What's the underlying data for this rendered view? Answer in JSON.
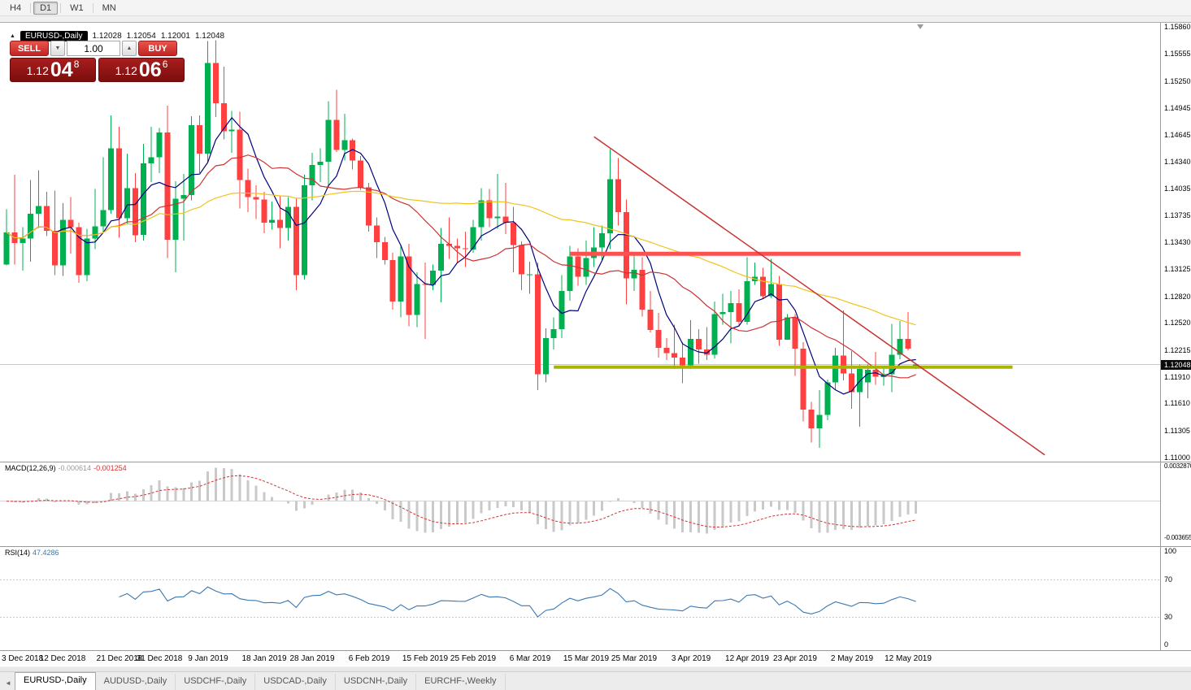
{
  "toolbar": {
    "timeframes": [
      {
        "label": "H4",
        "active": false
      },
      {
        "label": "D1",
        "active": true
      },
      {
        "label": "W1",
        "active": false
      },
      {
        "label": "MN",
        "active": false
      }
    ]
  },
  "symbol_info": {
    "collapse_icon": "▲",
    "symbol": "EURUSD-,Daily",
    "open": "1.12028",
    "high": "1.12054",
    "low": "1.12001",
    "close": "1.12048"
  },
  "trade_panel": {
    "sell_label": "SELL",
    "buy_label": "BUY",
    "volume": "1.00",
    "volume_down_icon": "▼",
    "volume_up_icon": "▲",
    "sell_price": {
      "main": "1.12",
      "big": "04",
      "sup": "8"
    },
    "buy_price": {
      "main": "1.12",
      "big": "06",
      "sup": "6"
    }
  },
  "macd_panel": {
    "name": "MACD(12,26,9)",
    "value1": "-0.000614",
    "value2": "-0.001254",
    "scale_top": "0.0032870",
    "scale_bottom": "-0.0036550"
  },
  "rsi_panel": {
    "name": "RSI(14)",
    "value": "47.4286",
    "scale": [
      "100",
      "70",
      "30",
      "0"
    ]
  },
  "tab_bar": {
    "scroll_left_icon": "◄",
    "tabs": [
      {
        "label": "EURUSD-,Daily",
        "active": true
      },
      {
        "label": "AUDUSD-,Daily",
        "active": false
      },
      {
        "label": "USDCHF-,Daily",
        "active": false
      },
      {
        "label": "USDCAD-,Daily",
        "active": false
      },
      {
        "label": "USDCNH-,Daily",
        "active": false
      },
      {
        "label": "EURCHF-,Weekly",
        "active": false
      }
    ]
  },
  "chart_data": {
    "type": "candlestick",
    "title": "EURUSD-,Daily",
    "y_axis": {
      "min": 1.11,
      "max": 1.1586,
      "tick_labels": [
        "1.15860",
        "1.15555",
        "1.15250",
        "1.14945",
        "1.14645",
        "1.14340",
        "1.14035",
        "1.13735",
        "1.13430",
        "1.13125",
        "1.12820",
        "1.12520",
        "1.12215",
        "1.11910",
        "1.11610",
        "1.11305",
        "1.11000"
      ]
    },
    "current_price": 1.12048,
    "current_price_label": "1.12048",
    "candle_colors": {
      "up": "#00b050",
      "down": "#ff4040"
    },
    "x_ticks": [
      {
        "label": "3 Dec 2018",
        "index": 0
      },
      {
        "label": "12 Dec 2018",
        "index": 7
      },
      {
        "label": "21 Dec 2018",
        "index": 14
      },
      {
        "label": "31 Dec 2018",
        "index": 19
      },
      {
        "label": "9 Jan 2019",
        "index": 25
      },
      {
        "label": "18 Jan 2019",
        "index": 32
      },
      {
        "label": "28 Jan 2019",
        "index": 38
      },
      {
        "label": "6 Feb 2019",
        "index": 45
      },
      {
        "label": "15 Feb 2019",
        "index": 52
      },
      {
        "label": "25 Feb 2019",
        "index": 58
      },
      {
        "label": "6 Mar 2019",
        "index": 65
      },
      {
        "label": "15 Mar 2019",
        "index": 72
      },
      {
        "label": "25 Mar 2019",
        "index": 78
      },
      {
        "label": "3 Apr 2019",
        "index": 85
      },
      {
        "label": "12 Apr 2019",
        "index": 92
      },
      {
        "label": "23 Apr 2019",
        "index": 98
      },
      {
        "label": "2 May 2019",
        "index": 105
      },
      {
        "label": "12 May 2019",
        "index": 112
      }
    ],
    "ohlc": [
      [
        1.1318,
        1.138,
        1.1317,
        1.1354
      ],
      [
        1.1354,
        1.1419,
        1.1318,
        1.1342
      ],
      [
        1.1342,
        1.136,
        1.1311,
        1.1347
      ],
      [
        1.1347,
        1.1413,
        1.1321,
        1.1375
      ],
      [
        1.1375,
        1.1424,
        1.1359,
        1.1384
      ],
      [
        1.1384,
        1.14,
        1.135,
        1.1356
      ],
      [
        1.1356,
        1.1401,
        1.1306,
        1.1317
      ],
      [
        1.1317,
        1.1387,
        1.1305,
        1.1368
      ],
      [
        1.1368,
        1.1394,
        1.133,
        1.136
      ],
      [
        1.136,
        1.1365,
        1.1297,
        1.1306
      ],
      [
        1.1306,
        1.1358,
        1.1299,
        1.1347
      ],
      [
        1.1347,
        1.1403,
        1.1335,
        1.1361
      ],
      [
        1.1361,
        1.1439,
        1.1354,
        1.1379
      ],
      [
        1.1379,
        1.1486,
        1.1375,
        1.1449
      ],
      [
        1.1449,
        1.1473,
        1.1348,
        1.137
      ],
      [
        1.137,
        1.1443,
        1.1363,
        1.1404
      ],
      [
        1.1404,
        1.1421,
        1.1343,
        1.1351
      ],
      [
        1.1351,
        1.1454,
        1.1345,
        1.1432
      ],
      [
        1.1432,
        1.1473,
        1.1411,
        1.1439
      ],
      [
        1.1439,
        1.1472,
        1.1421,
        1.1467
      ],
      [
        1.1467,
        1.1497,
        1.1325,
        1.1346
      ],
      [
        1.1346,
        1.1412,
        1.1309,
        1.1392
      ],
      [
        1.1392,
        1.142,
        1.1345,
        1.1396
      ],
      [
        1.1396,
        1.1485,
        1.139,
        1.1475
      ],
      [
        1.1475,
        1.1486,
        1.1421,
        1.1443
      ],
      [
        1.1443,
        1.157,
        1.1434,
        1.1545
      ],
      [
        1.1545,
        1.1571,
        1.1484,
        1.15
      ],
      [
        1.15,
        1.1541,
        1.1459,
        1.1468
      ],
      [
        1.1468,
        1.1491,
        1.1444,
        1.147
      ],
      [
        1.147,
        1.149,
        1.1381,
        1.1413
      ],
      [
        1.1413,
        1.1426,
        1.1377,
        1.1394
      ],
      [
        1.1394,
        1.1407,
        1.1369,
        1.1391
      ],
      [
        1.1391,
        1.14,
        1.1353,
        1.1365
      ],
      [
        1.1365,
        1.1389,
        1.1357,
        1.1368
      ],
      [
        1.1368,
        1.1395,
        1.1336,
        1.1359
      ],
      [
        1.1359,
        1.1394,
        1.1345,
        1.1383
      ],
      [
        1.1383,
        1.1393,
        1.1289,
        1.1306
      ],
      [
        1.1306,
        1.1419,
        1.1301,
        1.1407
      ],
      [
        1.1407,
        1.1444,
        1.139,
        1.143
      ],
      [
        1.143,
        1.1449,
        1.1411,
        1.1434
      ],
      [
        1.1434,
        1.1502,
        1.1405,
        1.1481
      ],
      [
        1.1481,
        1.1515,
        1.1445,
        1.1447
      ],
      [
        1.1447,
        1.1488,
        1.1435,
        1.1458
      ],
      [
        1.1458,
        1.146,
        1.1425,
        1.1435
      ],
      [
        1.1435,
        1.144,
        1.1402,
        1.1405
      ],
      [
        1.1405,
        1.141,
        1.1355,
        1.1362
      ],
      [
        1.1362,
        1.1371,
        1.1325,
        1.1343
      ],
      [
        1.1343,
        1.1349,
        1.1318,
        1.1323
      ],
      [
        1.1323,
        1.1331,
        1.1267,
        1.1276
      ],
      [
        1.1276,
        1.134,
        1.1258,
        1.1327
      ],
      [
        1.1327,
        1.1341,
        1.1248,
        1.1261
      ],
      [
        1.1261,
        1.1309,
        1.1247,
        1.1296
      ],
      [
        1.1296,
        1.132,
        1.1234,
        1.1295
      ],
      [
        1.1295,
        1.1318,
        1.1289,
        1.1311
      ],
      [
        1.1311,
        1.1359,
        1.1275,
        1.1341
      ],
      [
        1.1341,
        1.1371,
        1.1324,
        1.1339
      ],
      [
        1.1339,
        1.1347,
        1.132,
        1.1336
      ],
      [
        1.1336,
        1.1355,
        1.1315,
        1.1335
      ],
      [
        1.1335,
        1.1368,
        1.1331,
        1.136
      ],
      [
        1.136,
        1.1404,
        1.1345,
        1.139
      ],
      [
        1.139,
        1.1403,
        1.136,
        1.137
      ],
      [
        1.137,
        1.142,
        1.1358,
        1.1372
      ],
      [
        1.1372,
        1.141,
        1.1352,
        1.1365
      ],
      [
        1.1365,
        1.1383,
        1.1309,
        1.134
      ],
      [
        1.134,
        1.1344,
        1.1289,
        1.1307
      ],
      [
        1.1307,
        1.1321,
        1.1285,
        1.1307
      ],
      [
        1.1307,
        1.132,
        1.1176,
        1.1194
      ],
      [
        1.1194,
        1.1246,
        1.1185,
        1.1235
      ],
      [
        1.1235,
        1.1258,
        1.1222,
        1.1245
      ],
      [
        1.1245,
        1.1306,
        1.1235,
        1.1288
      ],
      [
        1.1288,
        1.1339,
        1.1277,
        1.1327
      ],
      [
        1.1327,
        1.1336,
        1.1294,
        1.1304
      ],
      [
        1.1304,
        1.1345,
        1.1295,
        1.1325
      ],
      [
        1.1325,
        1.136,
        1.1315,
        1.1337
      ],
      [
        1.1337,
        1.1362,
        1.1323,
        1.1353
      ],
      [
        1.1353,
        1.1448,
        1.1335,
        1.1414
      ],
      [
        1.1414,
        1.1438,
        1.1362,
        1.1377
      ],
      [
        1.1377,
        1.1391,
        1.1273,
        1.1302
      ],
      [
        1.1302,
        1.133,
        1.1288,
        1.1312
      ],
      [
        1.1312,
        1.1326,
        1.1259,
        1.1267
      ],
      [
        1.1267,
        1.1288,
        1.1241,
        1.1244
      ],
      [
        1.1244,
        1.1263,
        1.1213,
        1.1224
      ],
      [
        1.1224,
        1.1235,
        1.121,
        1.1218
      ],
      [
        1.1218,
        1.125,
        1.12,
        1.1213
      ],
      [
        1.1213,
        1.123,
        1.1184,
        1.1204
      ],
      [
        1.1204,
        1.1255,
        1.12,
        1.1234
      ],
      [
        1.1234,
        1.1245,
        1.1206,
        1.1222
      ],
      [
        1.1222,
        1.1247,
        1.121,
        1.1216
      ],
      [
        1.1216,
        1.1276,
        1.1212,
        1.1262
      ],
      [
        1.1262,
        1.1285,
        1.125,
        1.1264
      ],
      [
        1.1264,
        1.1288,
        1.1229,
        1.1274
      ],
      [
        1.1274,
        1.129,
        1.1248,
        1.1253
      ],
      [
        1.1253,
        1.1326,
        1.125,
        1.1299
      ],
      [
        1.1299,
        1.132,
        1.1295,
        1.1304
      ],
      [
        1.1304,
        1.1314,
        1.1279,
        1.1282
      ],
      [
        1.1282,
        1.1324,
        1.128,
        1.1296
      ],
      [
        1.1296,
        1.1305,
        1.1226,
        1.1233
      ],
      [
        1.1233,
        1.1262,
        1.1233,
        1.1258
      ],
      [
        1.1258,
        1.1262,
        1.1192,
        1.1223
      ],
      [
        1.1223,
        1.123,
        1.1141,
        1.1154
      ],
      [
        1.1154,
        1.1163,
        1.1117,
        1.1133
      ],
      [
        1.1133,
        1.1176,
        1.1111,
        1.1148
      ],
      [
        1.1148,
        1.1188,
        1.1142,
        1.1185
      ],
      [
        1.1185,
        1.1224,
        1.1176,
        1.1215
      ],
      [
        1.1215,
        1.1266,
        1.1187,
        1.1195
      ],
      [
        1.1195,
        1.122,
        1.1155,
        1.1174
      ],
      [
        1.1174,
        1.1205,
        1.1135,
        1.12
      ],
      [
        1.1185,
        1.1205,
        1.1167,
        1.1199
      ],
      [
        1.1199,
        1.1219,
        1.1182,
        1.1191
      ],
      [
        1.1191,
        1.1203,
        1.1181,
        1.1194
      ],
      [
        1.1194,
        1.1251,
        1.1174,
        1.1216
      ],
      [
        1.1216,
        1.1254,
        1.1211,
        1.1234
      ],
      [
        1.1234,
        1.1264,
        1.1221,
        1.1223
      ],
      [
        1.12028,
        1.12054,
        1.12001,
        1.12048
      ]
    ],
    "moving_averages": [
      {
        "period": 6,
        "color": "#00007f"
      },
      {
        "period": 14,
        "color": "#cd3333"
      },
      {
        "period": 50,
        "color": "#f0c420"
      }
    ],
    "objects": {
      "resistance_line": {
        "price": 1.133,
        "from_index": 70,
        "to_index": 126,
        "color": "#ff5050",
        "width": 5
      },
      "support_line": {
        "price": 1.1202,
        "from_index": 68,
        "to_index": 125,
        "color": "#aab400",
        "width": 4
      },
      "trendline": {
        "from": {
          "index": 73,
          "price": 1.1462
        },
        "to": {
          "index": 129,
          "price": 1.1103
        },
        "color": "#c83232",
        "width": 1.5
      }
    },
    "indicators": {
      "macd": {
        "fast": 12,
        "slow": 26,
        "signal": 9,
        "histogram_color": "#c9c9c9",
        "signal_color": "#d93030",
        "scale_max": 0.003287,
        "scale_min": -0.003655
      },
      "rsi": {
        "period": 14,
        "color": "#3b78b0",
        "levels": [
          70,
          30
        ],
        "scale_max": 100,
        "scale_min": 0
      }
    }
  }
}
